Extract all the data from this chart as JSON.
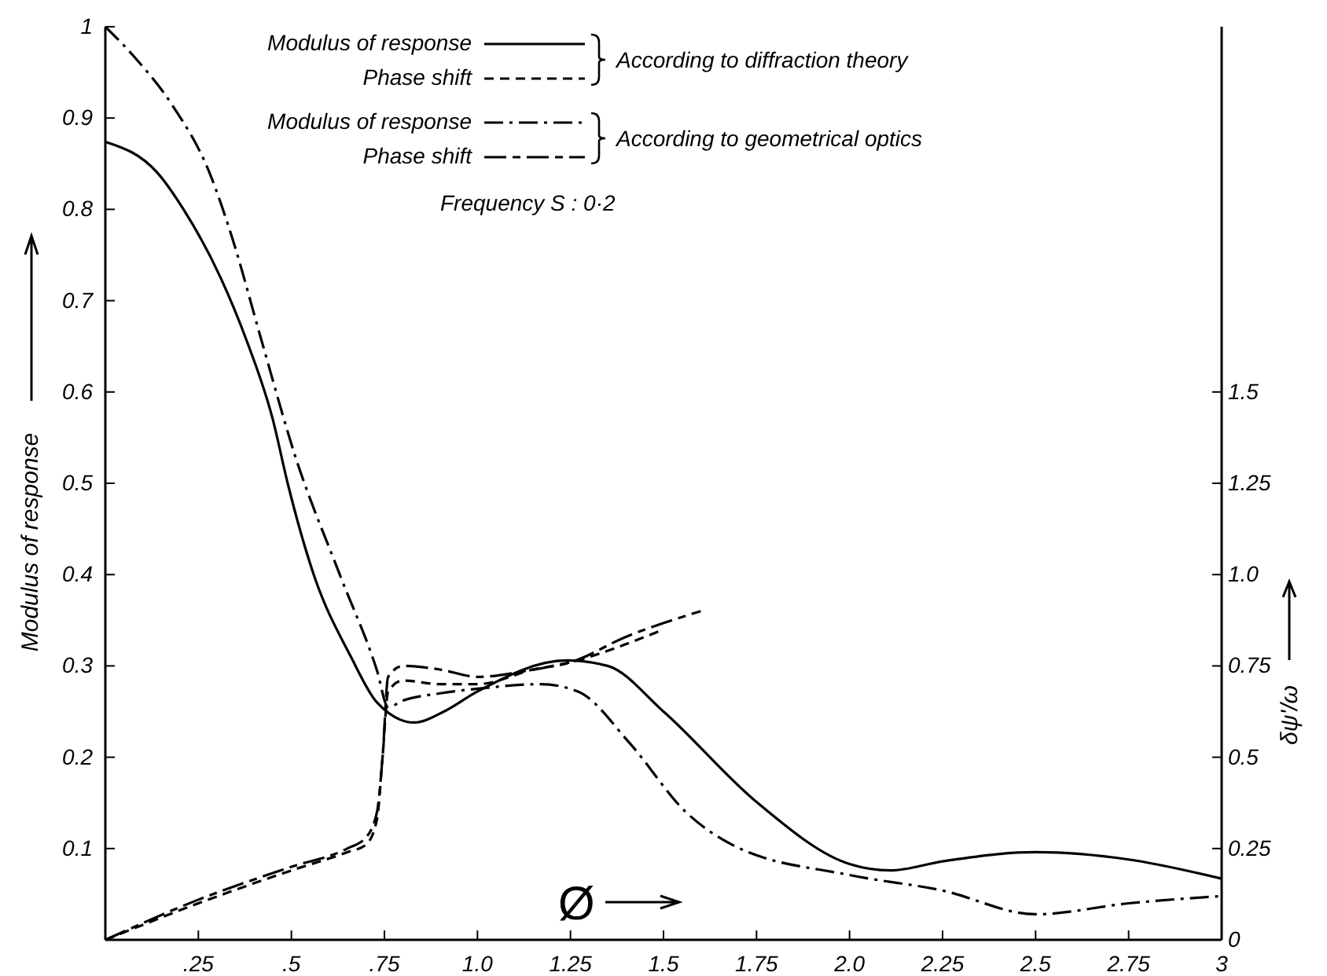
{
  "chart_data": {
    "type": "line",
    "xlabel": "Ø",
    "ylabel": "Modulus of response",
    "y2label": "δψ'/ω",
    "annotations": [
      "According to diffraction theory",
      "According to geometrical optics",
      "Frequency  S : 0·2"
    ],
    "xlim": [
      0,
      3
    ],
    "xticks": [
      {
        "value": 0,
        "label": null
      },
      {
        "value": 0.25,
        "label": ".25"
      },
      {
        "value": 0.5,
        "label": ".5"
      },
      {
        "value": 0.75,
        "label": ".75"
      },
      {
        "value": 1,
        "label": "1.0"
      },
      1.25,
      1.5,
      1.75,
      {
        "value": 2,
        "label": "2.0"
      },
      2.25,
      2.5,
      2.75,
      3
    ],
    "ylim": [
      0,
      1
    ],
    "yticks": [
      0.1,
      0.2,
      0.3,
      0.4,
      0.5,
      0.6,
      0.7,
      0.8,
      0.9,
      1
    ],
    "y2lim": [
      0,
      2.5
    ],
    "y2ticks": [
      0,
      0.25,
      0.5,
      0.75,
      {
        "value": 1,
        "label": "1.0"
      },
      1.25,
      1.5
    ],
    "legend": "top",
    "grid": false,
    "marker": "none",
    "series": [
      {
        "name": "Modulus of response",
        "color": "#000000",
        "line_style": "solid",
        "x": [
          0,
          0.14,
          0.21,
          0.31,
          0.38,
          0.45,
          0.49,
          0.56,
          0.66,
          0.73,
          0.83,
          0.91,
          1.0,
          1.24,
          1.35,
          1.5,
          1.75,
          2.0,
          2.11,
          2.25,
          2.5,
          2.75,
          3
        ],
        "values": [
          0.874,
          0.84,
          0.8,
          0.725,
          0.656,
          0.57,
          0.5,
          0.4,
          0.31,
          0.26,
          0.238,
          0.25,
          0.272,
          0.306,
          0.3,
          0.25,
          0.151,
          0.083,
          0.076,
          0.086,
          0.096,
          0.088,
          0.067
        ]
      },
      {
        "name": "Phase shift",
        "color": "#000000",
        "line_style": "dashed",
        "axis": "y2",
        "x": [
          0,
          0.25,
          0.5,
          0.65,
          0.7,
          0.73,
          0.745,
          0.76,
          0.8,
          0.9,
          1.0,
          1.15,
          1.25,
          1.4,
          1.5
        ],
        "values": [
          0,
          0.1,
          0.19,
          0.24,
          0.26,
          0.33,
          0.5,
          0.68,
          0.71,
          0.7,
          0.7,
          0.74,
          0.76,
          0.81,
          0.85
        ]
      },
      {
        "name": "Modulus of response",
        "color": "#000000",
        "line_style": "dashdot",
        "x": [
          0,
          0.08,
          0.18,
          0.28,
          0.34,
          0.42,
          0.51,
          0.63,
          0.73,
          0.76,
          0.8,
          0.9,
          1.0,
          1.17,
          1.27,
          1.41,
          1.56,
          1.69,
          2.0,
          2.25,
          2.5,
          2.75,
          3
        ],
        "values": [
          1.0,
          0.966,
          0.914,
          0.84,
          0.77,
          0.656,
          0.53,
          0.4,
          0.295,
          0.255,
          0.262,
          0.27,
          0.275,
          0.28,
          0.272,
          0.215,
          0.14,
          0.103,
          0.071,
          0.054,
          0.028,
          0.04,
          0.048
        ]
      },
      {
        "name": "Phase shift",
        "color": "#000000",
        "line_style": "longdash",
        "axis": "y2",
        "x": [
          0,
          0.25,
          0.5,
          0.65,
          0.7,
          0.73,
          0.745,
          0.76,
          0.8,
          0.9,
          1.0,
          1.15,
          1.25,
          1.4,
          1.6
        ],
        "values": [
          0,
          0.11,
          0.2,
          0.25,
          0.28,
          0.35,
          0.5,
          0.72,
          0.75,
          0.74,
          0.72,
          0.74,
          0.76,
          0.83,
          0.9
        ]
      }
    ]
  }
}
